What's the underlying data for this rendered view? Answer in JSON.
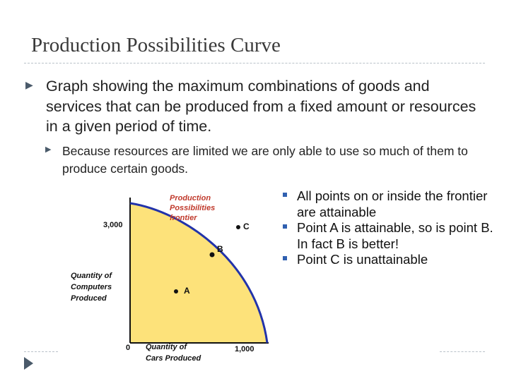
{
  "slide": {
    "title": "Production Possibilities Curve",
    "bullet_main": "Graph showing the maximum combinations of goods and services that can be produced from a fixed amount or resources in a given period of time.",
    "bullet_sub": "Because resources are limited we are only able to use so much of them to produce certain goods."
  },
  "figure": {
    "frontier_label_line1": "Production",
    "frontier_label_line2": "Possibilities",
    "frontier_label_line3": "frontier",
    "y_tick": "3,000",
    "x_tick": "1,000",
    "origin": "0",
    "ylabel_line1": "Quantity of",
    "ylabel_line2": "Computers",
    "ylabel_line3": "Produced",
    "xlabel_line1": "Quantity of",
    "xlabel_line2": "Cars Produced",
    "point_a": "A",
    "point_b": "B",
    "point_c": "C",
    "colors": {
      "fill": "#fde27a",
      "curve": "#2233aa",
      "label_red": "#c0392b",
      "bullet_blue": "#3060b0"
    }
  },
  "side_points": [
    {
      "text": "All points on or inside the frontier are attainable"
    },
    {
      "text": "Point A is attainable, so is point B.  In fact B is better!"
    },
    {
      "text": "Point C is unattainable"
    }
  ]
}
